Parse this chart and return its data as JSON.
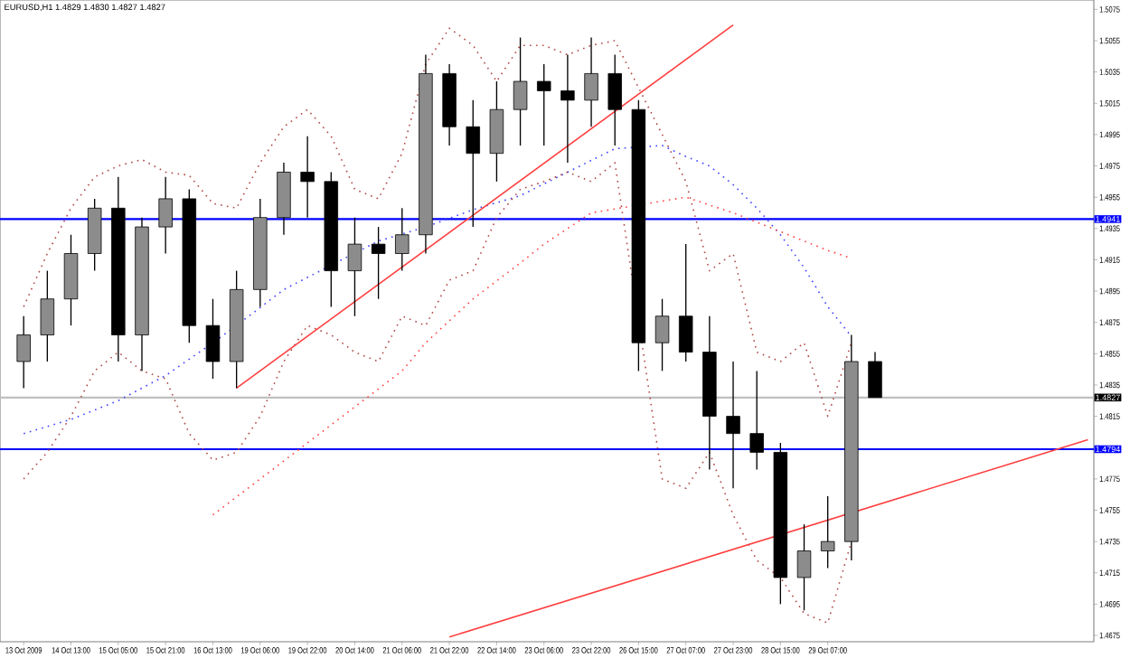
{
  "chart_data": {
    "type": "candlestick",
    "title": "EURUSD,H1 1.4829 1.4830 1.4827 1.4827",
    "categories": [
      "13 Oct 2009",
      null,
      "14 Oct 13:00",
      null,
      "15 Oct 05:00",
      null,
      "15 Oct 21:00",
      null,
      "16 Oct 13:00",
      null,
      "19 Oct 06:00",
      null,
      "19 Oct 22:00",
      null,
      "20 Oct 14:00",
      null,
      "21 Oct 06:00",
      null,
      "21 Oct 22:00",
      null,
      "22 Oct 14:00",
      null,
      "23 Oct 06:00",
      null,
      "23 Oct 22:00",
      null,
      "26 Oct 15:00",
      null,
      "27 Oct 07:00",
      null,
      "27 Oct 23:00",
      null,
      "28 Oct 15:00",
      null,
      "29 Oct 07:00",
      null,
      null,
      null,
      null,
      null,
      null,
      null,
      null,
      null,
      null,
      null
    ],
    "color": "#000000",
    "ohlc": [
      [
        1.485,
        1.4879,
        1.4833,
        1.4867
      ],
      [
        1.4867,
        1.4908,
        1.485,
        1.489
      ],
      [
        1.489,
        1.4931,
        1.4873,
        1.4919
      ],
      [
        1.4919,
        1.4954,
        1.4908,
        1.4948
      ],
      [
        1.4948,
        1.4968,
        1.485,
        1.4867
      ],
      [
        1.4867,
        1.4942,
        1.4844,
        1.4936
      ],
      [
        1.4936,
        1.4968,
        1.4919,
        1.4954
      ],
      [
        1.4954,
        1.496,
        1.4862,
        1.4873
      ],
      [
        1.4873,
        1.489,
        1.4839,
        1.485
      ],
      [
        1.485,
        1.4908,
        1.4833,
        1.4896
      ],
      [
        1.4896,
        1.4954,
        1.4885,
        1.4942
      ],
      [
        1.4942,
        1.4977,
        1.4931,
        1.4971
      ],
      [
        1.4971,
        1.4994,
        1.4942,
        1.4965
      ],
      [
        1.4965,
        1.4971,
        1.4885,
        1.4908
      ],
      [
        1.4908,
        1.4942,
        1.4879,
        1.4925
      ],
      [
        1.4925,
        1.4936,
        1.489,
        1.4919
      ],
      [
        1.4919,
        1.4948,
        1.4908,
        1.4931
      ],
      [
        1.4931,
        1.5046,
        1.4919,
        1.5034
      ],
      [
        1.5034,
        1.504,
        1.4988,
        1.5
      ],
      [
        1.5,
        1.5017,
        1.4936,
        1.4983
      ],
      [
        1.4983,
        1.5029,
        1.4965,
        1.5011
      ],
      [
        1.5011,
        1.5057,
        1.4988,
        1.5029
      ],
      [
        1.5029,
        1.504,
        1.4988,
        1.5023
      ],
      [
        1.5023,
        1.5046,
        1.4977,
        1.5017
      ],
      [
        1.5017,
        1.5057,
        1.5,
        1.5034
      ],
      [
        1.5034,
        1.5046,
        1.4988,
        1.5011
      ],
      [
        1.5011,
        1.5017,
        1.4844,
        1.4862
      ],
      [
        1.4862,
        1.489,
        1.4844,
        1.4879
      ],
      [
        1.4879,
        1.4925,
        1.485,
        1.4856
      ],
      [
        1.4856,
        1.4879,
        1.4781,
        1.4815
      ],
      [
        1.4815,
        1.485,
        1.4769,
        1.4804
      ],
      [
        1.4804,
        1.4844,
        1.4781,
        1.4792
      ],
      [
        1.4792,
        1.4798,
        1.4695,
        1.4712
      ],
      [
        1.4712,
        1.4746,
        1.4691,
        1.4729
      ],
      [
        1.4729,
        1.4764,
        1.4718,
        1.4735
      ],
      [
        1.4735,
        1.4867,
        1.4723,
        1.485
      ],
      [
        1.485,
        1.4856,
        1.4827,
        1.4827
      ],
      null,
      null,
      null,
      null,
      null,
      null,
      null,
      null,
      null
    ],
    "series": [
      {
        "type": "line",
        "color": "#4040ff",
        "line_style": "dotted",
        "values": [
          1.4804,
          null,
          1.4813,
          null,
          1.4825,
          null,
          1.4841,
          null,
          1.4862,
          1.4873,
          null,
          1.4896,
          null,
          null,
          null,
          1.4927,
          null,
          1.4936,
          null,
          1.4947,
          null,
          1.4956,
          null,
          1.4971,
          null,
          1.4986,
          null,
          1.4988,
          1.4981,
          1.4975,
          1.4963,
          1.4948,
          1.4931,
          1.491,
          1.4885,
          1.4866,
          null,
          null,
          null,
          null,
          null,
          null,
          null,
          null,
          null,
          null
        ]
      },
      {
        "type": "line",
        "color": "#ff4040",
        "line_style": "dotted",
        "values": [
          null,
          null,
          null,
          null,
          null,
          null,
          null,
          null,
          1.4752,
          null,
          1.4775,
          null,
          1.4798,
          null,
          1.4821,
          null,
          1.4844,
          1.4862,
          null,
          1.489,
          null,
          1.4913,
          1.4925,
          null,
          1.4945,
          null,
          null,
          null,
          1.4955,
          null,
          1.4945,
          null,
          1.4933,
          null,
          1.4921,
          1.4916,
          null,
          null,
          null,
          null,
          null,
          null,
          null,
          null,
          null,
          null
        ]
      },
      {
        "type": "line",
        "color": "#b04848",
        "line_style": "dotted",
        "values": [
          1.4885,
          1.4919,
          1.4948,
          1.4968,
          1.4975,
          1.4979,
          1.4971,
          1.4969,
          1.4951,
          1.4948,
          1.4977,
          1.5,
          1.5011,
          1.4994,
          1.496,
          1.4954,
          1.4983,
          1.504,
          1.5063,
          1.5052,
          1.5029,
          1.5052,
          1.5052,
          1.5046,
          1.5052,
          1.5055,
          null,
          null,
          1.4965,
          1.4908,
          1.4919,
          1.4856,
          1.485,
          1.4862,
          1.4815,
          1.4862,
          null,
          null,
          null,
          null,
          null,
          null,
          null,
          null,
          null,
          null
        ]
      },
      {
        "type": "line",
        "color": "#b04848",
        "line_style": "dotted",
        "values": [
          1.4775,
          1.4792,
          1.4815,
          1.4844,
          1.4856,
          1.4844,
          1.4839,
          1.4804,
          1.4787,
          1.4792,
          1.4815,
          1.485,
          1.4873,
          1.4867,
          1.4856,
          1.485,
          1.4879,
          1.4873,
          1.4902,
          1.4908,
          1.4942,
          1.496,
          1.4965,
          1.4971,
          1.4965,
          1.4977,
          null,
          1.4775,
          1.4769,
          1.4792,
          1.4752,
          1.4723,
          1.4712,
          1.4689,
          1.4683,
          1.4735,
          null,
          null,
          null,
          null,
          null,
          null,
          null,
          null,
          null,
          null
        ]
      },
      {
        "type": "line",
        "color": "#ff4040",
        "line_style": "solid",
        "values": [
          null,
          null,
          null,
          null,
          null,
          null,
          null,
          null,
          null,
          1.4833,
          null,
          null,
          null,
          null,
          null,
          null,
          null,
          null,
          null,
          null,
          null,
          null,
          null,
          null,
          null,
          null,
          null,
          null,
          null,
          null,
          1.5065,
          null,
          null,
          null,
          null,
          null,
          null,
          null,
          null,
          null,
          null,
          null,
          null,
          null,
          null,
          null
        ]
      },
      {
        "type": "line",
        "color": "#ff4040",
        "line_style": "solid",
        "values": [
          null,
          null,
          null,
          null,
          null,
          null,
          null,
          null,
          null,
          null,
          null,
          null,
          null,
          null,
          null,
          null,
          null,
          null,
          1.4674,
          null,
          null,
          null,
          null,
          null,
          null,
          null,
          null,
          null,
          null,
          null,
          null,
          null,
          null,
          null,
          null,
          null,
          null,
          null,
          null,
          null,
          null,
          null,
          null,
          null,
          null,
          1.48
        ]
      }
    ],
    "ref_lines": [
      {
        "axis": "y",
        "value": 1.4941,
        "label": "1.4941",
        "color": "#0000ff"
      },
      {
        "axis": "y",
        "value": 1.4794,
        "label": "1.4794",
        "color": "#0000ff"
      },
      {
        "axis": "y",
        "value": 1.4827,
        "label": "1.4827",
        "color": "#c0c0c0"
      }
    ],
    "ylim": [
      1.4671,
      1.5081
    ],
    "yticks": [
      1.4675,
      1.4695,
      1.4715,
      1.4735,
      1.4755,
      1.4775,
      {
        "value": 1.4795,
        "label": null
      },
      1.4815,
      1.4835,
      1.4855,
      1.4875,
      1.4895,
      1.4915,
      1.4935,
      1.4955,
      1.4975,
      1.4995,
      1.5015,
      1.5035,
      1.5055,
      1.5075
    ]
  }
}
